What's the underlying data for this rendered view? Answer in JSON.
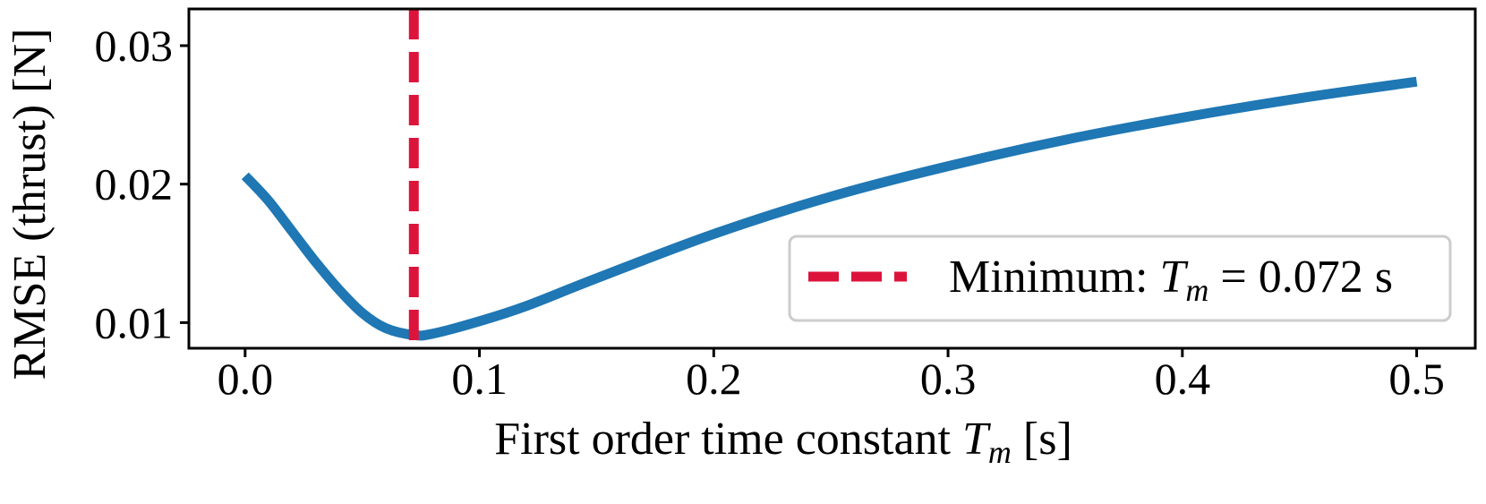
{
  "chart_data": {
    "type": "line",
    "xlabel": {
      "main": "First order time constant ",
      "sym": "T",
      "sub": "m",
      "unit": " [s]"
    },
    "ylabel": "RMSE (thrust) [N]",
    "xlim": [
      -0.024,
      0.525
    ],
    "ylim": [
      0.00815,
      0.03265
    ],
    "xticks": [
      0.0,
      0.1,
      0.2,
      0.3,
      0.4,
      0.5
    ],
    "xtick_labels": [
      "0.0",
      "0.1",
      "0.2",
      "0.3",
      "0.4",
      "0.5"
    ],
    "yticks": [
      0.01,
      0.02,
      0.03
    ],
    "ytick_labels": [
      "0.01",
      "0.02",
      "0.03"
    ],
    "grid": false,
    "legend_position": "lower-right",
    "series": [
      {
        "color": "#1f77b4",
        "x": [
          0.0,
          0.01,
          0.02,
          0.03,
          0.04,
          0.05,
          0.06,
          0.072,
          0.08,
          0.1,
          0.12,
          0.15,
          0.2,
          0.25,
          0.3,
          0.35,
          0.4,
          0.45,
          0.5
        ],
        "y": [
          0.0206,
          0.0188,
          0.0166,
          0.0144,
          0.0124,
          0.0107,
          0.0096,
          0.0091,
          0.0092,
          0.0101,
          0.0112,
          0.0132,
          0.0164,
          0.0191,
          0.0213,
          0.0232,
          0.0248,
          0.0262,
          0.0274
        ]
      }
    ],
    "vline": {
      "x": 0.072,
      "color": "#dc143c",
      "style": "dashed",
      "legend": {
        "prefix": "Minimum: ",
        "sym": "T",
        "sub": "m",
        "suffix": " = 0.072 s"
      }
    }
  }
}
